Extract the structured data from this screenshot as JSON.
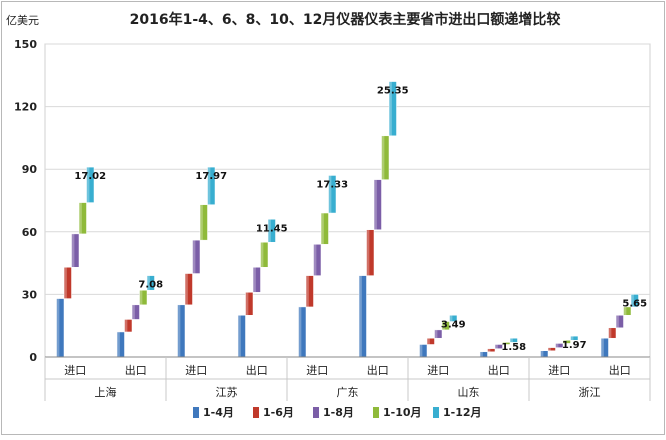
{
  "chart_data": {
    "type": "bar",
    "title": "2016年1-4、6、8、10、12月仪器仪表主要省市进出口额递增比较",
    "ylabel": "亿美元",
    "ylim": [
      0,
      150
    ],
    "yticks": [
      0,
      30,
      60,
      90,
      120,
      150
    ],
    "grid": true,
    "legend_position": "bottom",
    "groups": [
      "上海",
      "江苏",
      "广东",
      "山东",
      "浙江"
    ],
    "subcategories": [
      "进口",
      "出口"
    ],
    "series": [
      {
        "name": "1-4月",
        "color": "#3f78bd",
        "values": [
          28,
          12,
          25,
          20,
          24,
          39,
          6,
          2.5,
          3,
          9
        ]
      },
      {
        "name": "1-6月",
        "color": "#c0392b",
        "values": [
          43,
          18,
          40,
          31,
          39,
          61,
          9,
          4,
          4.5,
          14
        ]
      },
      {
        "name": "1-8月",
        "color": "#7b5ea7",
        "values": [
          59,
          25,
          56,
          43,
          54,
          85,
          13,
          6,
          6.5,
          20
        ]
      },
      {
        "name": "1-10月",
        "color": "#8fba3a",
        "values": [
          74,
          32,
          73,
          55,
          69,
          106,
          17,
          7,
          8,
          24
        ]
      },
      {
        "name": "1-12月",
        "color": "#38aed0",
        "values": [
          91,
          39,
          91,
          66,
          87,
          132,
          20,
          9,
          10,
          30
        ]
      }
    ],
    "annotations": [
      "17.02",
      "7.08",
      "17.97",
      "11.45",
      "17.33",
      "25.35",
      "3.49",
      "1.58",
      "1.97",
      "5.65"
    ]
  }
}
